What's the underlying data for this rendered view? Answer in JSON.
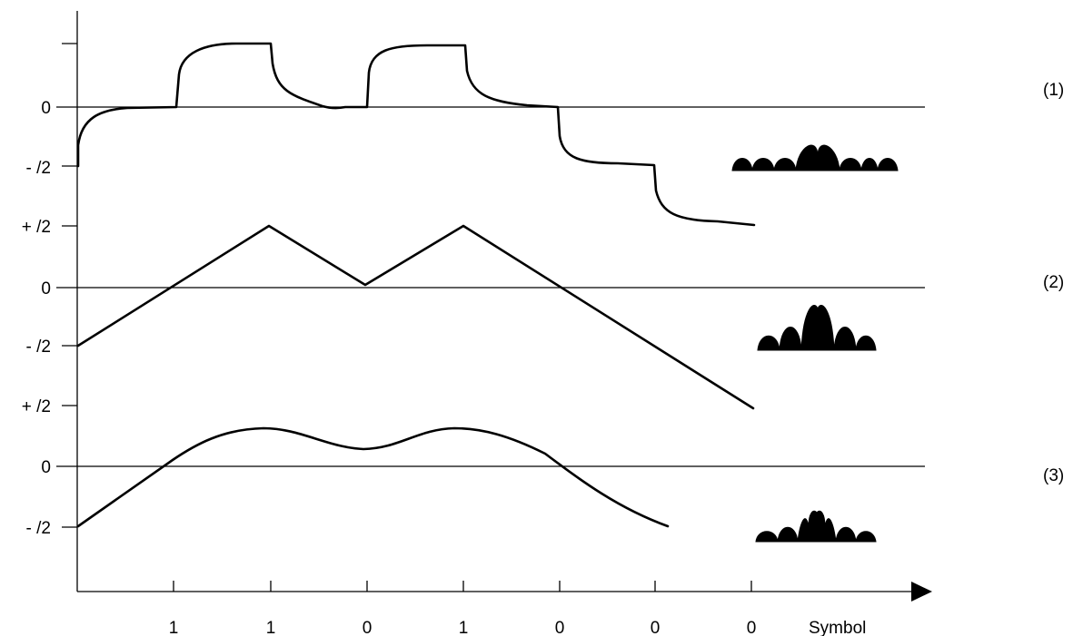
{
  "y_axis_labels": [
    "0",
    "- /2",
    "+ /2",
    "0",
    "- /2",
    "+ /2",
    "0",
    "- /2"
  ],
  "panel_labels": [
    "(1)",
    "(2)",
    "(3)"
  ],
  "symbols": [
    "1",
    "1",
    "0",
    "1",
    "0",
    "0",
    "0"
  ],
  "symbol_axis_label": "Symbol",
  "colors": {
    "stroke": "#000000",
    "background": "#ffffff"
  }
}
